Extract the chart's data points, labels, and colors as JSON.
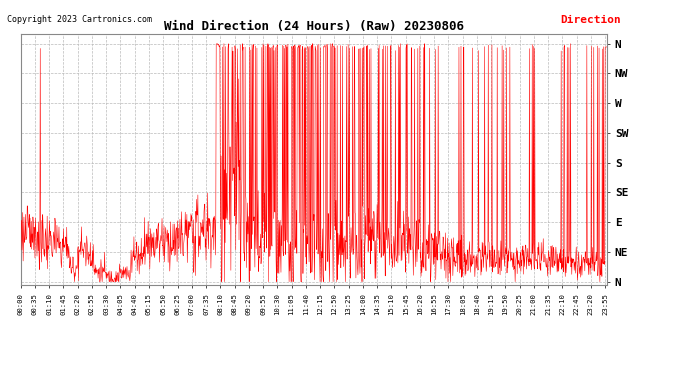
{
  "title": "Wind Direction (24 Hours) (Raw) 20230806",
  "copyright": "Copyright 2023 Cartronics.com",
  "legend_label": "Direction",
  "line_color": "#FF0000",
  "bg_color": "#ffffff",
  "grid_color": "#bbbbbb",
  "title_color": "#000000",
  "copyright_color": "#000000",
  "legend_color": "#FF0000",
  "ytick_labels": [
    "N",
    "NE",
    "E",
    "SE",
    "S",
    "SW",
    "W",
    "NW",
    "N"
  ],
  "ytick_values": [
    0,
    45,
    90,
    135,
    180,
    225,
    270,
    315,
    360
  ],
  "ylim": [
    -5,
    375
  ],
  "total_minutes": 1440,
  "x_tick_interval_minutes": 35,
  "x_tick_labels": [
    "00:00",
    "00:35",
    "01:10",
    "01:45",
    "02:20",
    "02:55",
    "03:30",
    "04:05",
    "04:40",
    "05:15",
    "05:50",
    "06:25",
    "07:00",
    "07:35",
    "08:10",
    "08:45",
    "09:20",
    "09:55",
    "10:30",
    "11:05",
    "11:40",
    "12:15",
    "12:50",
    "13:25",
    "14:00",
    "14:35",
    "15:10",
    "15:45",
    "16:20",
    "16:55",
    "17:30",
    "18:05",
    "18:40",
    "19:15",
    "19:50",
    "20:25",
    "21:00",
    "21:35",
    "22:10",
    "22:45",
    "23:20",
    "23:55"
  ],
  "figsize": [
    6.9,
    3.75
  ],
  "dpi": 100
}
